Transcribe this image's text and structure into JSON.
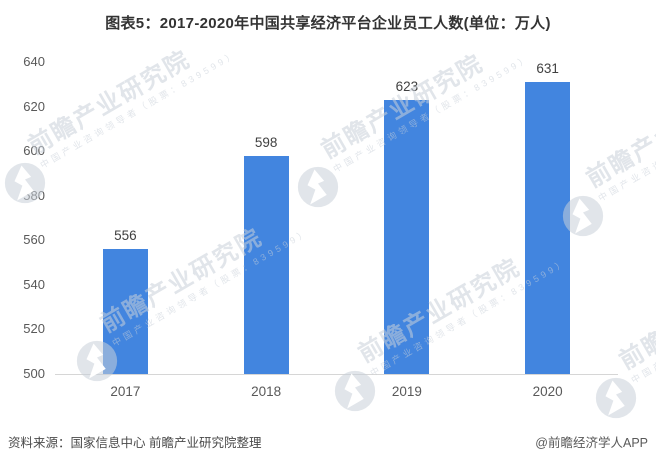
{
  "chart_data": {
    "type": "bar",
    "title": "图表5：2017-2020年中国共享经济平台企业员工人数(单位：万人)",
    "categories": [
      "2017",
      "2018",
      "2019",
      "2020"
    ],
    "values": [
      556,
      598,
      623,
      631
    ],
    "unit": "万人",
    "xlabel": "",
    "ylabel": "",
    "ylim": [
      500,
      640
    ],
    "yticks": [
      500,
      520,
      540,
      560,
      580,
      600,
      620,
      640
    ],
    "grid": false,
    "legend_position": "none",
    "value_labels_shown": true
  },
  "footer": {
    "source": "资料来源：国家信息中心 前瞻产业研究院整理",
    "credit": "@前瞻经济学人APP"
  },
  "watermark": {
    "brand": "前瞻产业研究院",
    "subtext": "中国产业咨询领导者（股票：839599）",
    "logo_icon": "qianzhan-logo"
  },
  "colors": {
    "bar": "#4285DF",
    "title_text": "#333333",
    "axis_text": "#595959",
    "value_text": "#404040",
    "axis_line": "#d6d6d6",
    "watermark": "#dfe3e9"
  }
}
